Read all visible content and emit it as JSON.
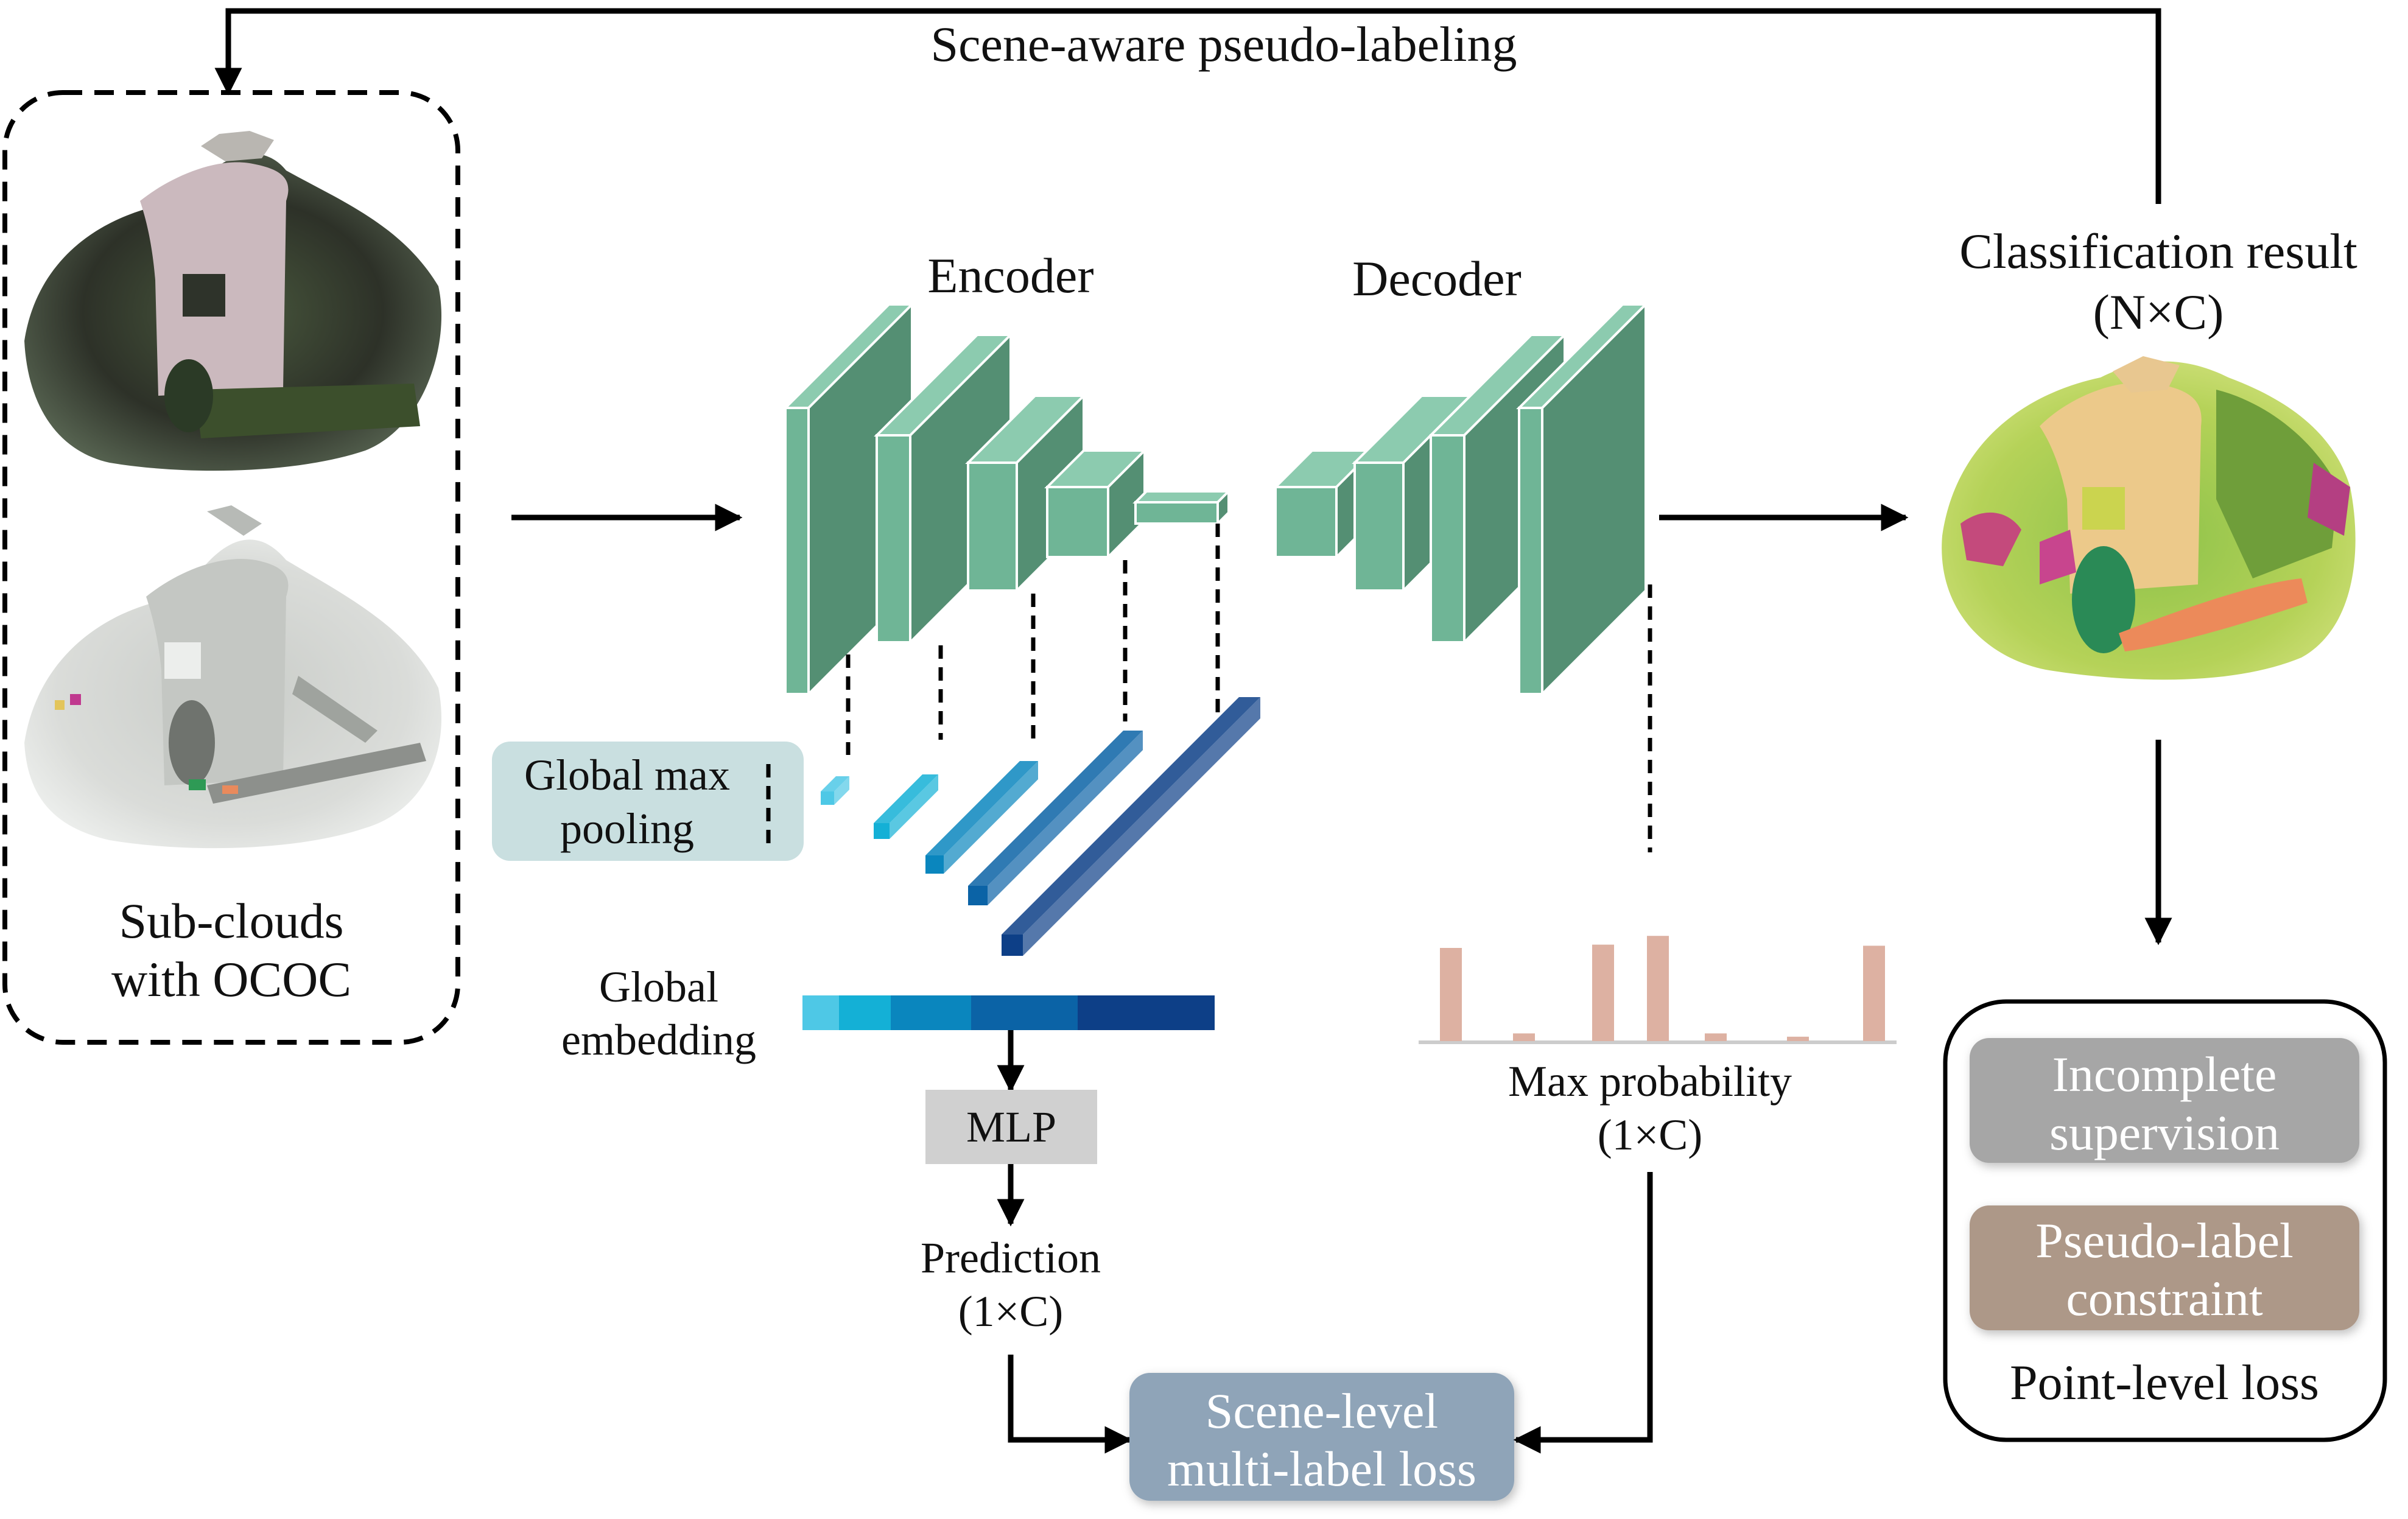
{
  "labels": {
    "feedback": "Scene-aware pseudo-labeling",
    "subclouds_line1": "Sub-clouds",
    "subclouds_line2": "with OCOC",
    "encoder": "Encoder",
    "decoder": "Decoder",
    "classification_line1": "Classification result",
    "classification_line2": "(N×C)",
    "gmp_line1": "Global max",
    "gmp_line2": "pooling",
    "global_embedding_line1": "Global",
    "global_embedding_line2": "embedding",
    "mlp": "MLP",
    "prediction_line1": "Prediction",
    "prediction_line2": "(1×C)",
    "max_prob_line1": "Max probability",
    "max_prob_line2": "(1×C)",
    "scene_loss_line1": "Scene-level",
    "scene_loss_line2": "multi-label loss",
    "incomplete_line1": "Incomplete",
    "incomplete_line2": "supervision",
    "pseudo_line1": "Pseudo-label",
    "pseudo_line2": "constraint",
    "point_loss": "Point-level loss"
  },
  "colors": {
    "block_front": "#6fb596",
    "block_side": "#548f73",
    "block_top": "#8ccbaf",
    "gmp_box": "#c9dfe0",
    "mlp_box": "#d0d0d0",
    "scene_loss_box": "#8fa4b8",
    "incomplete_box": "#a6a6a6",
    "pseudo_box": "#ad9888",
    "prob_bar": "#ddb1a2",
    "embedding_segments": [
      "#4ec8e6",
      "#14b0d6",
      "#0a86be",
      "#0b63a6",
      "#0d3f87"
    ]
  },
  "probability_bars": [
    0.85,
    0.07,
    0.88,
    0.96,
    0.07,
    0.04,
    0.87
  ]
}
